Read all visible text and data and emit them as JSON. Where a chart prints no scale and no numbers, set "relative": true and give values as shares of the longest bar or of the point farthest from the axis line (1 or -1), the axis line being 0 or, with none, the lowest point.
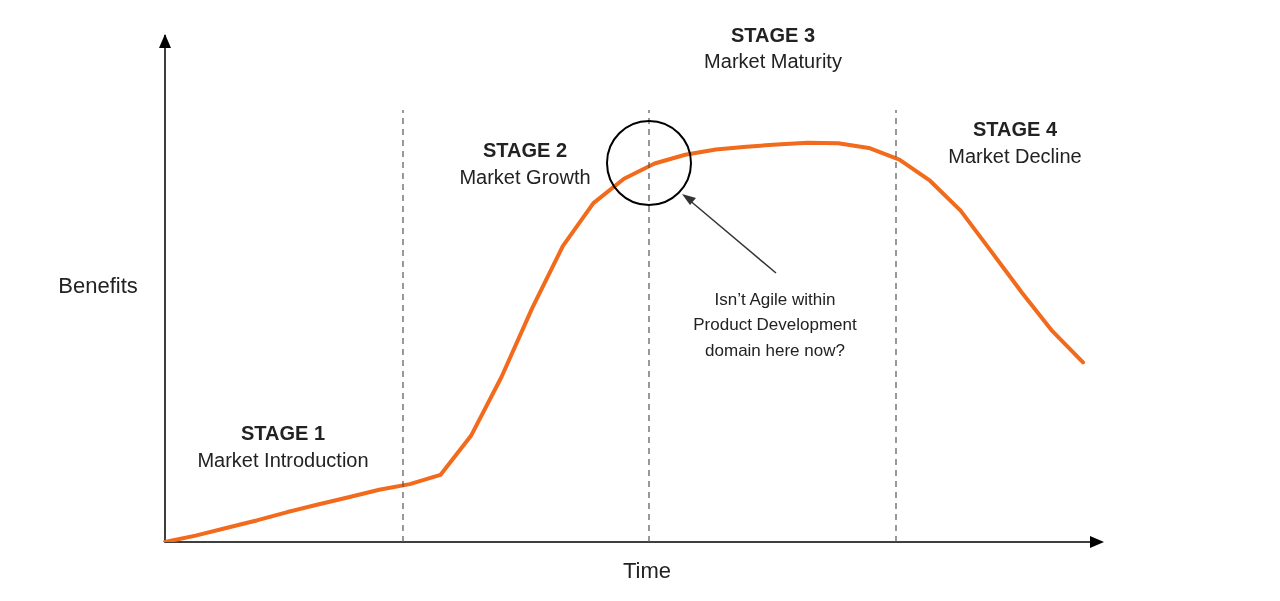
{
  "chart_data": {
    "type": "line",
    "relative": true,
    "xlabel": "Time",
    "ylabel": "Benefits",
    "tick_labels": false,
    "grid": false,
    "legend": false,
    "marker": "none",
    "line_style": "solid",
    "categories": [
      null,
      null,
      null,
      null,
      null,
      null,
      null,
      null,
      null,
      null,
      null,
      null,
      null,
      null,
      null,
      null,
      null,
      null,
      null,
      null,
      null,
      null,
      null,
      null,
      null,
      null,
      null,
      null,
      null,
      null,
      null
    ],
    "series": [
      {
        "color": "#f26a1b",
        "values": [
          0,
          0.016,
          0.035,
          0.054,
          0.075,
          0.094,
          0.112,
          0.131,
          0.145,
          0.168,
          0.266,
          0.414,
          0.586,
          0.741,
          0.849,
          0.91,
          0.948,
          0.97,
          0.983,
          0.99,
          0.996,
          1,
          0.999,
          0.987,
          0.958,
          0.905,
          0.83,
          0.728,
          0.625,
          0.528,
          0.45
        ]
      }
    ],
    "annotations": [
      "STAGE 1",
      "Market Introduction",
      "STAGE 2",
      "Market Growth",
      "STAGE 3",
      "Market Maturity",
      "STAGE 4",
      "Market Decline",
      "Isn’t Agile within Product Development domain here now?"
    ]
  }
}
